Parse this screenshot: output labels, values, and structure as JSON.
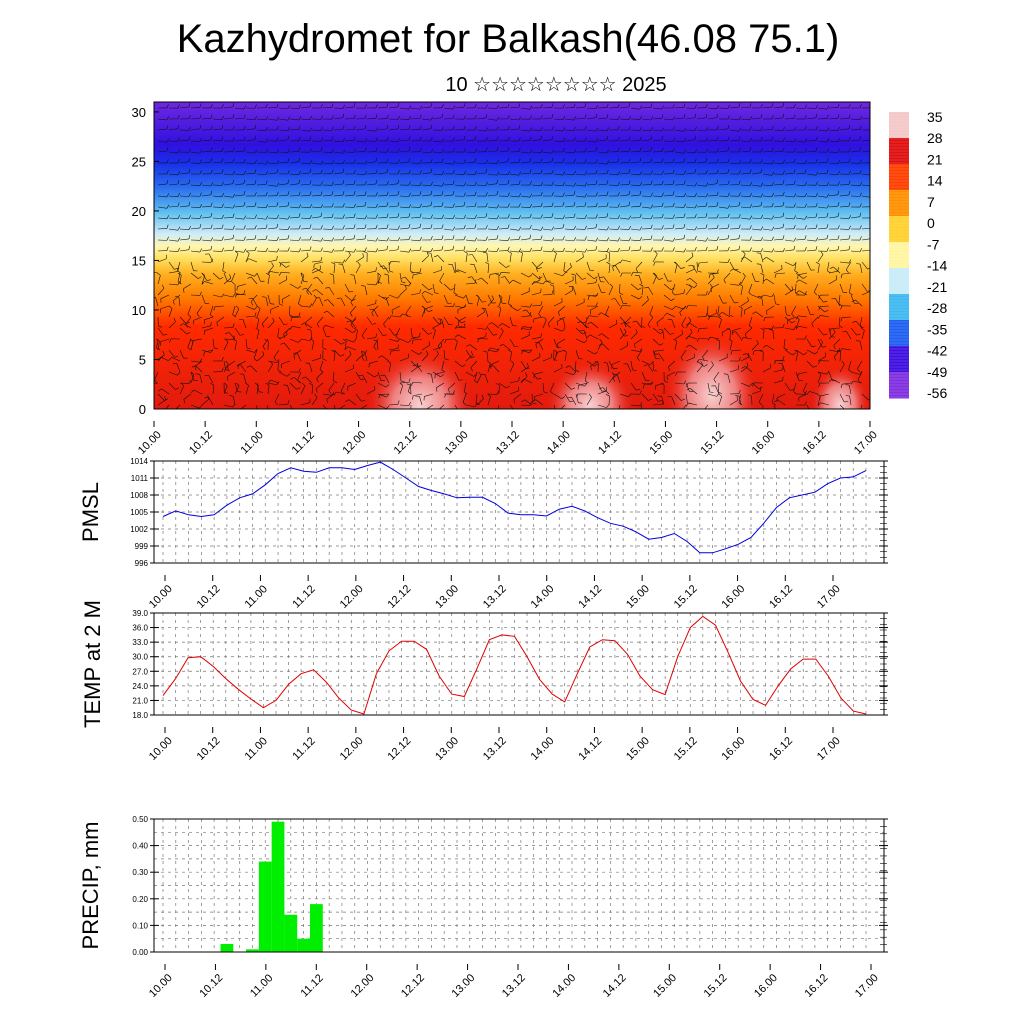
{
  "header": {
    "title": "Kazhydromet for Balkash(46.08 75.1)",
    "subtitle": "10 ☆☆☆☆☆☆☆☆ 2025"
  },
  "chart_data": [
    {
      "type": "heatmap",
      "name": "cross-section",
      "x_tick_labels": [
        "10.00",
        "10.12",
        "11.00",
        "11.12",
        "12.00",
        "12.12",
        "13.00",
        "13.12",
        "14.00",
        "14.12",
        "15.00",
        "15.12",
        "16.00",
        "16.12",
        "17.00"
      ],
      "y_ticks": [
        "0",
        "5",
        "10",
        "15",
        "20",
        "25",
        "30"
      ],
      "ylim": [
        0,
        31
      ],
      "colorbar_labels": [
        "35",
        "28",
        "21",
        "14",
        "7",
        "0",
        "-7",
        "-14",
        "-21",
        "-28",
        "-35",
        "-42",
        "-49",
        "-56"
      ],
      "colorbar_colors": [
        "#f4c8c8",
        "#e01010",
        "#ff4000",
        "#ff9000",
        "#ffd030",
        "#fff5a0",
        "#c8ecf8",
        "#40b8f0",
        "#2060f0",
        "#4010e0",
        "#8030e0"
      ],
      "overlay": "wind barbs"
    },
    {
      "type": "line",
      "name": "pmsl",
      "ylabel": "PMSL",
      "y_ticks": [
        "996",
        "999",
        "1002",
        "1005",
        "1008",
        "1011",
        "1014"
      ],
      "ylim": [
        996,
        1014
      ],
      "x_tick_labels": [
        "10.00",
        "10.12",
        "11.00",
        "11.12",
        "12.00",
        "12.12",
        "13.00",
        "13.12",
        "14.00",
        "14.12",
        "15.00",
        "15.12",
        "16.00",
        "16.12",
        "17.00"
      ],
      "color": "#0000e0",
      "values": [
        1004.2,
        1005.2,
        1004.5,
        1004.2,
        1004.5,
        1006.2,
        1007.5,
        1008.2,
        1009.8,
        1011.8,
        1012.8,
        1012.2,
        1012.0,
        1012.8,
        1012.8,
        1012.5,
        1013.2,
        1013.8,
        1012.5,
        1011.0,
        1009.5,
        1008.8,
        1008.2,
        1007.5,
        1007.6,
        1007.6,
        1006.5,
        1004.8,
        1004.5,
        1004.5,
        1004.3,
        1005.5,
        1006.0,
        1005.2,
        1004.0,
        1003.0,
        1002.5,
        1001.5,
        1000.2,
        1000.5,
        1001.2,
        999.8,
        997.8,
        997.8,
        998.5,
        999.3,
        1000.5,
        1003.0,
        1005.8,
        1007.5,
        1008.0,
        1008.5,
        1010.0,
        1011.0,
        1011.2,
        1012.3
      ]
    },
    {
      "type": "line",
      "name": "temp",
      "ylabel": "TEMP at 2 M",
      "y_ticks": [
        "18.0",
        "21.0",
        "24.0",
        "27.0",
        "30.0",
        "33.0",
        "36.0",
        "39.0"
      ],
      "ylim": [
        18,
        39
      ],
      "x_tick_labels": [
        "10.00",
        "10.12",
        "11.00",
        "11.12",
        "12.00",
        "12.12",
        "13.00",
        "13.12",
        "14.00",
        "14.12",
        "15.00",
        "15.12",
        "16.00",
        "16.12",
        "17.00"
      ],
      "color": "#e00000",
      "values": [
        22.0,
        25.5,
        29.8,
        30.0,
        28.0,
        25.5,
        23.3,
        21.3,
        19.5,
        21.0,
        24.3,
        26.5,
        27.3,
        24.8,
        21.5,
        19.0,
        18.2,
        26.5,
        31.2,
        33.2,
        33.2,
        31.5,
        26.0,
        22.3,
        21.8,
        27.5,
        33.5,
        34.5,
        34.2,
        30.0,
        25.3,
        22.3,
        20.7,
        26.5,
        32.0,
        33.5,
        33.3,
        30.5,
        26.0,
        23.2,
        22.2,
        30.0,
        36.0,
        38.3,
        36.5,
        31.0,
        25.0,
        21.2,
        20.0,
        24.0,
        27.5,
        29.5,
        29.5,
        26.0,
        21.5,
        18.8,
        18.2
      ]
    },
    {
      "type": "bar",
      "name": "precip",
      "ylabel": "PRECIP, mm",
      "y_ticks": [
        "0.00",
        "0.10",
        "0.20",
        "0.30",
        "0.40",
        "0.50"
      ],
      "ylim": [
        0,
        0.5
      ],
      "x_tick_labels": [
        "10.00",
        "10.12",
        "11.00",
        "11.12",
        "12.00",
        "12.12",
        "13.00",
        "13.12",
        "14.00",
        "14.12",
        "15.00",
        "15.12",
        "16.00",
        "16.12",
        "17.00"
      ],
      "color": "#00ee00",
      "values": [
        0,
        0,
        0,
        0,
        0,
        0.03,
        0,
        0.01,
        0.34,
        0.49,
        0.14,
        0.05,
        0.18,
        0,
        0,
        0,
        0,
        0,
        0,
        0,
        0,
        0,
        0,
        0,
        0,
        0,
        0,
        0,
        0,
        0,
        0,
        0,
        0,
        0,
        0,
        0,
        0,
        0,
        0,
        0,
        0,
        0,
        0,
        0,
        0,
        0,
        0,
        0,
        0,
        0,
        0,
        0,
        0,
        0,
        0,
        0
      ]
    }
  ]
}
